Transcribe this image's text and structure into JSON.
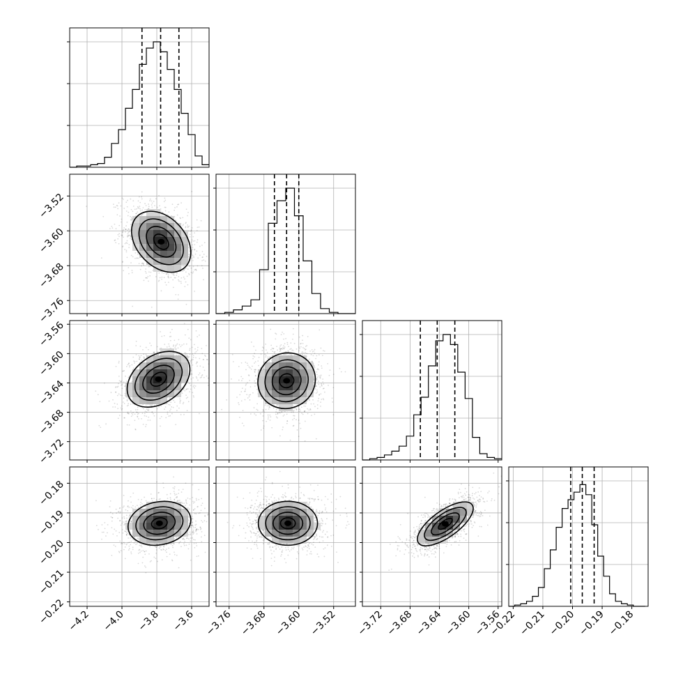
{
  "chart_data": {
    "type": "corner",
    "n_params": 4,
    "grid": true,
    "axes": [
      {
        "ticks": [
          -4.2,
          -4.0,
          -3.8,
          -3.6
        ],
        "tick_labels": [
          "−4.2",
          "−4.0",
          "−3.8",
          "−3.6"
        ],
        "range": [
          -4.3,
          -3.5
        ]
      },
      {
        "ticks": [
          -3.76,
          -3.68,
          -3.6,
          -3.52
        ],
        "tick_labels": [
          "−3.76",
          "−3.68",
          "−3.60",
          "−3.52"
        ],
        "range": [
          -3.79,
          -3.47
        ]
      },
      {
        "ticks": [
          -3.72,
          -3.68,
          -3.64,
          -3.6,
          -3.56
        ],
        "tick_labels": [
          "−3.72",
          "−3.68",
          "−3.64",
          "−3.60",
          "−3.56"
        ],
        "range": [
          -3.745,
          -3.555
        ]
      },
      {
        "ticks": [
          -0.22,
          -0.21,
          -0.2,
          -0.19,
          -0.18
        ],
        "tick_labels": [
          "−0.22",
          "−0.21",
          "−0.20",
          "−0.19",
          "−0.18"
        ],
        "range": [
          -0.2215,
          -0.1745
        ]
      }
    ],
    "marginals": [
      {
        "param": 0,
        "quantiles": [
          -3.885,
          -3.778,
          -3.673
        ],
        "bin_edges": [
          -4.3,
          -4.26,
          -4.22,
          -4.18,
          -4.14,
          -4.1,
          -4.06,
          -4.02,
          -3.98,
          -3.94,
          -3.9,
          -3.86,
          -3.82,
          -3.78,
          -3.74,
          -3.7,
          -3.66,
          -3.62,
          -3.58,
          -3.54,
          -3.5
        ],
        "counts": [
          0,
          0.01,
          0.01,
          0.02,
          0.03,
          0.08,
          0.19,
          0.3,
          0.47,
          0.62,
          0.82,
          0.95,
          1.0,
          0.92,
          0.78,
          0.62,
          0.43,
          0.26,
          0.09,
          0.02
        ]
      },
      {
        "param": 1,
        "quantiles": [
          -3.656,
          -3.628,
          -3.6
        ],
        "bin_edges": [
          -3.79,
          -3.77,
          -3.75,
          -3.73,
          -3.71,
          -3.69,
          -3.67,
          -3.65,
          -3.63,
          -3.61,
          -3.59,
          -3.57,
          -3.55,
          -3.53,
          -3.51,
          -3.49,
          -3.47
        ],
        "counts": [
          0,
          0.01,
          0.03,
          0.06,
          0.11,
          0.35,
          0.72,
          0.9,
          1.0,
          0.78,
          0.42,
          0.16,
          0.04,
          0.01,
          0,
          0
        ]
      },
      {
        "param": 2,
        "quantiles": [
          -3.666,
          -3.643,
          -3.619
        ],
        "bin_edges": [
          -3.745,
          -3.735,
          -3.725,
          -3.715,
          -3.705,
          -3.695,
          -3.685,
          -3.675,
          -3.665,
          -3.655,
          -3.645,
          -3.635,
          -3.625,
          -3.615,
          -3.605,
          -3.595,
          -3.585,
          -3.575,
          -3.565,
          -3.555
        ],
        "counts": [
          0,
          0.01,
          0.02,
          0.04,
          0.07,
          0.11,
          0.19,
          0.36,
          0.5,
          0.75,
          0.95,
          1.0,
          0.92,
          0.7,
          0.49,
          0.18,
          0.05,
          0.02,
          0.01
        ]
      },
      {
        "param": 3,
        "quantiles": [
          -0.2006,
          -0.1967,
          -0.1927
        ],
        "bin_edges": [
          -0.2215,
          -0.2195,
          -0.2175,
          -0.2155,
          -0.2135,
          -0.2115,
          -0.2095,
          -0.2075,
          -0.2055,
          -0.2035,
          -0.2015,
          -0.1995,
          -0.1975,
          -0.1955,
          -0.1935,
          -0.1915,
          -0.1895,
          -0.1875,
          -0.1855,
          -0.1835,
          -0.1815,
          -0.1795,
          -0.1775,
          -0.1755
        ],
        "counts": [
          0,
          0.01,
          0.02,
          0.04,
          0.08,
          0.15,
          0.3,
          0.45,
          0.63,
          0.78,
          0.85,
          0.91,
          0.97,
          0.89,
          0.65,
          0.4,
          0.24,
          0.1,
          0.04,
          0.02,
          0.01,
          0,
          0
        ]
      }
    ],
    "joints": [
      {
        "x_param": 0,
        "y_param": 1,
        "center": [
          -3.775,
          -3.625
        ],
        "sd": [
          0.085,
          0.035
        ],
        "corr": -0.35
      },
      {
        "x_param": 0,
        "y_param": 2,
        "center": [
          -3.79,
          -3.635
        ],
        "sd": [
          0.09,
          0.019
        ],
        "corr": 0.35
      },
      {
        "x_param": 1,
        "y_param": 2,
        "center": [
          -3.628,
          -3.637
        ],
        "sd": [
          0.033,
          0.019
        ],
        "corr": 0.05
      },
      {
        "x_param": 0,
        "y_param": 3,
        "center": [
          -3.785,
          -0.1935
        ],
        "sd": [
          0.09,
          0.0037
        ],
        "corr": 0.15
      },
      {
        "x_param": 1,
        "y_param": 3,
        "center": [
          -3.625,
          -0.1935
        ],
        "sd": [
          0.034,
          0.0037
        ],
        "corr": 0.0
      },
      {
        "x_param": 2,
        "y_param": 3,
        "center": [
          -3.632,
          -0.1937
        ],
        "sd": [
          0.019,
          0.0037
        ],
        "corr": 0.7
      }
    ],
    "contour_levels_sigma": [
      0.5,
      1.0,
      1.5,
      2.0
    ]
  }
}
